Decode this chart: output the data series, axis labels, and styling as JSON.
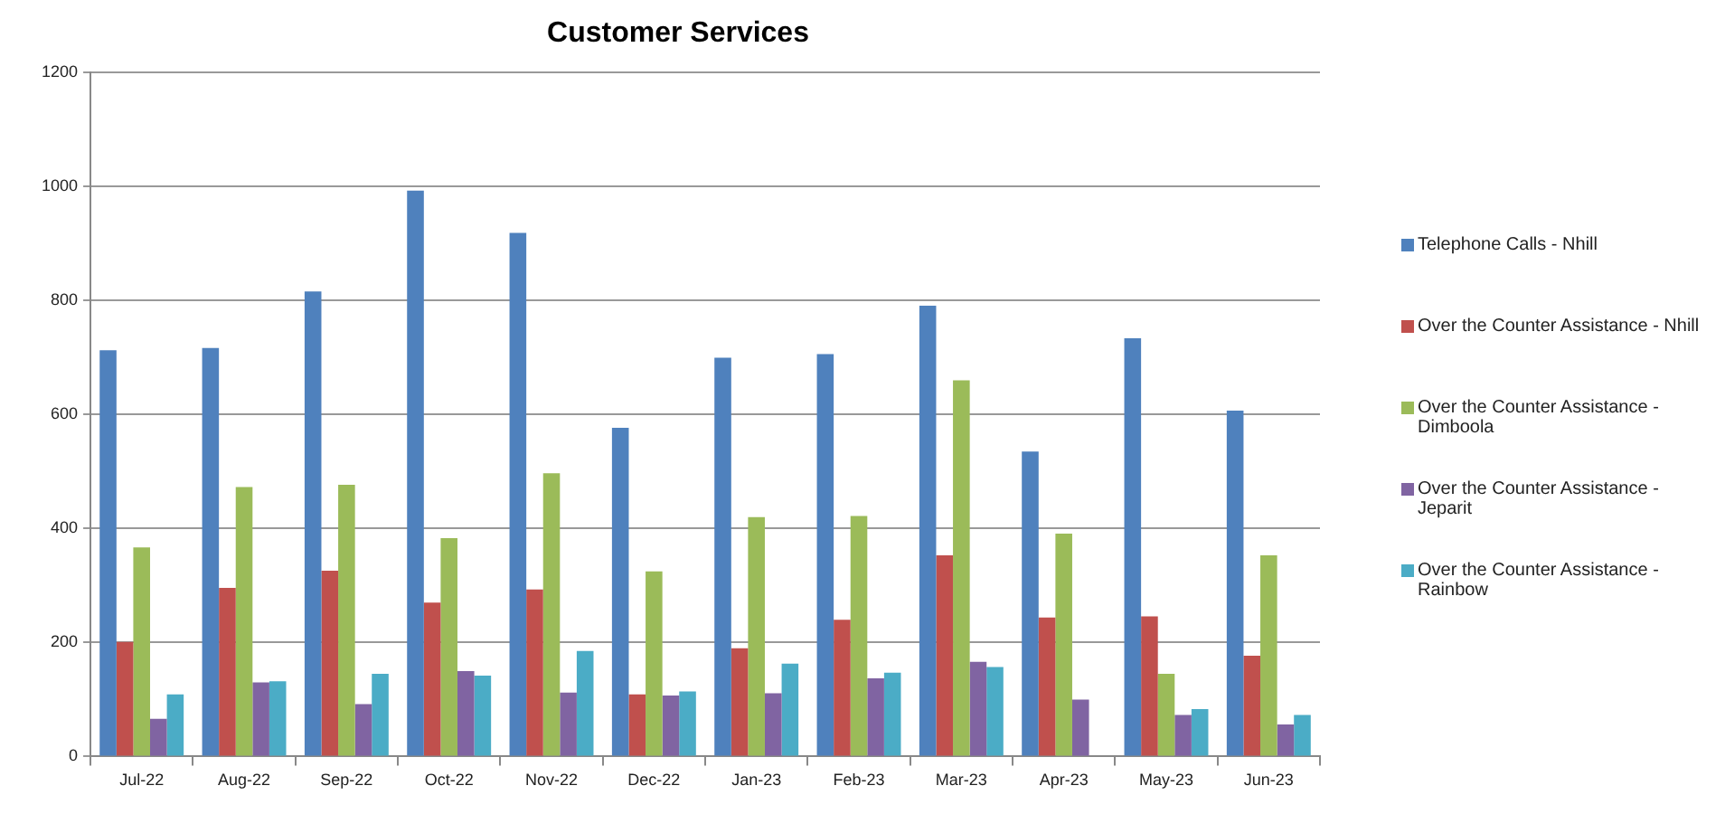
{
  "chart_data": {
    "type": "bar",
    "title": "Customer Services",
    "categories": [
      "Jul-22",
      "Aug-22",
      "Sep-22",
      "Oct-22",
      "Nov-22",
      "Dec-22",
      "Jan-23",
      "Feb-23",
      "Mar-23",
      "Apr-23",
      "May-23",
      "Jun-23"
    ],
    "series": [
      {
        "name": "Telephone Calls - Nhill",
        "color": "#4f81bd",
        "values": [
          713,
          717,
          816,
          993,
          919,
          577,
          700,
          706,
          791,
          535,
          734,
          607
        ]
      },
      {
        "name": "Over the Counter Assistance - Nhill",
        "color": "#c0504d",
        "values": [
          201,
          296,
          326,
          270,
          293,
          109,
          190,
          240,
          353,
          244,
          246,
          177
        ]
      },
      {
        "name": "Over the Counter Assistance - Dimboola",
        "color": "#9bbb59",
        "values": [
          367,
          473,
          477,
          383,
          497,
          325,
          420,
          422,
          660,
          391,
          145,
          353
        ]
      },
      {
        "name": "Over the Counter Assistance - Jeparit",
        "color": "#8064a2",
        "values": [
          66,
          130,
          92,
          150,
          112,
          107,
          111,
          137,
          166,
          100,
          73,
          56
        ]
      },
      {
        "name": "Over the Counter Assistance - Rainbow",
        "color": "#4bacc6",
        "values": [
          109,
          132,
          145,
          142,
          185,
          114,
          163,
          147,
          157,
          null,
          83,
          73
        ]
      }
    ],
    "ylim": [
      0,
      1200
    ],
    "yticks": [
      0,
      200,
      400,
      600,
      800,
      1000,
      1200
    ],
    "grid": "y",
    "legend": "right"
  }
}
